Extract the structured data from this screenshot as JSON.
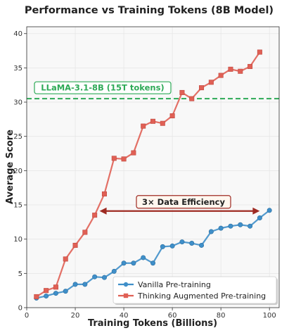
{
  "chart_data": {
    "type": "line",
    "title": "Performance vs Training Tokens (8B Model)",
    "xlabel": "Training Tokens (Billions)",
    "ylabel": "Average Score",
    "xlim": [
      0,
      104
    ],
    "ylim": [
      0,
      41
    ],
    "xticks": [
      0,
      20,
      40,
      60,
      80,
      100
    ],
    "yticks": [
      0,
      5,
      10,
      15,
      20,
      25,
      30,
      35,
      40
    ],
    "grid": true,
    "legend": "lower-right",
    "x": [
      4,
      8,
      12,
      16,
      20,
      24,
      28,
      32,
      36,
      40,
      44,
      48,
      52,
      56,
      60,
      64,
      68,
      72,
      76,
      80,
      84,
      88,
      92,
      96,
      100
    ],
    "series": [
      {
        "name": "Vanilla Pre-training",
        "color": "#3f8fc9",
        "marker": "circle",
        "values": [
          1.4,
          1.7,
          2.1,
          2.4,
          3.4,
          3.4,
          4.5,
          4.4,
          5.3,
          6.5,
          6.5,
          7.3,
          6.5,
          8.9,
          9.0,
          9.6,
          9.4,
          9.1,
          11.1,
          11.6,
          11.9,
          12.1,
          11.9,
          13.1,
          14.2
        ]
      },
      {
        "name": "Thinking Augmented Pre-training",
        "color": "#e06055",
        "marker": "square",
        "values": [
          1.6,
          2.5,
          3.0,
          7.1,
          9.1,
          11.0,
          13.5,
          16.6,
          21.8,
          21.7,
          22.6,
          26.5,
          27.2,
          26.9,
          28.0,
          31.4,
          30.5,
          32.1,
          32.9,
          33.9,
          34.8,
          34.5,
          35.2,
          37.3,
          null
        ]
      }
    ],
    "reference_line": {
      "label": "LLaMA-3.1-8B (15T tokens)",
      "y": 30.5,
      "color": "#2eaa57"
    },
    "annotation": {
      "label": "3× Data Efficiency",
      "y": 14.1,
      "x_start": 30,
      "x_end": 96,
      "color": "#9e2a22"
    }
  }
}
